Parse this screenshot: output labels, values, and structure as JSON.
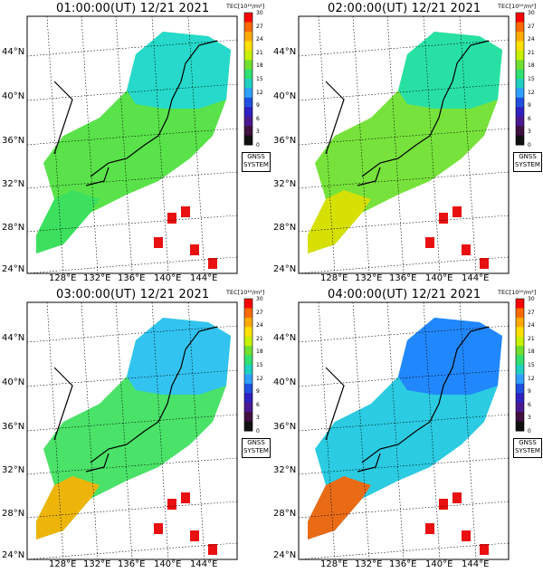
{
  "colorbar": {
    "label": "TEC[10¹⁶/m²]",
    "ticks": [
      "30",
      "27",
      "24",
      "21",
      "18",
      "15",
      "12",
      "9",
      "6",
      "3",
      "0"
    ],
    "colors": [
      "#ff0000",
      "#ff6a00",
      "#ffaa00",
      "#ffe000",
      "#c8f000",
      "#70e030",
      "#30e070",
      "#20d0c0",
      "#30a0ff",
      "#2050e0",
      "#3020c0",
      "#4a1890",
      "#401040",
      "#101010"
    ]
  },
  "system_label_line1": "GNSS",
  "system_label_line2": "SYSTEM",
  "lat_labels": [
    "44°N",
    "40°N",
    "36°N",
    "32°N",
    "28°N",
    "24°N"
  ],
  "lon_labels": [
    "128°E",
    "132°E",
    "136°E",
    "140°E",
    "144°E"
  ],
  "panels": [
    {
      "title": "01:00:00(UT) 12/21 2021",
      "north_color": "#20d8d8",
      "mid_color": "#50e040",
      "south_color": "#38e060"
    },
    {
      "title": "02:00:00(UT) 12/21 2021",
      "north_color": "#20e0b0",
      "mid_color": "#70e030",
      "south_color": "#e0e000"
    },
    {
      "title": "03:00:00(UT) 12/21 2021",
      "north_color": "#30c0ff",
      "mid_color": "#40e060",
      "south_color": "#ffb000"
    },
    {
      "title": "04:00:00(UT) 12/21 2021",
      "north_color": "#2080ff",
      "mid_color": "#20c8e0",
      "south_color": "#ff6000"
    }
  ]
}
